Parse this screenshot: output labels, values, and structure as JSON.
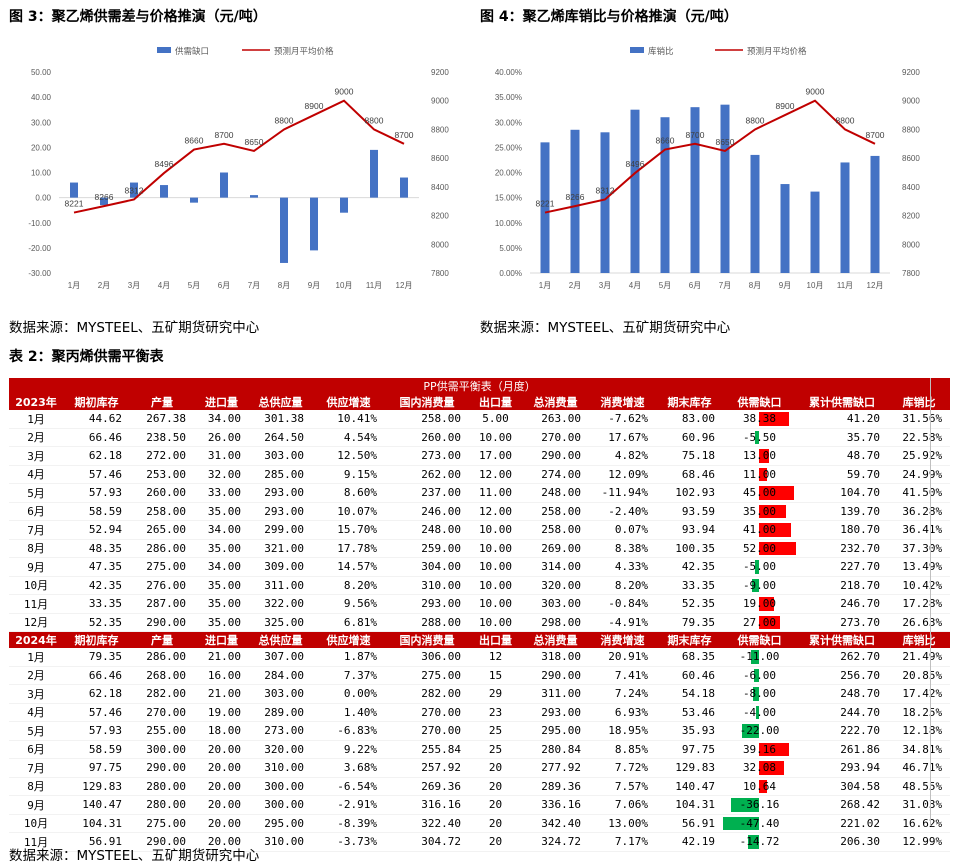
{
  "colors": {
    "bar": "#4472c4",
    "line": "#c00000",
    "header_bg": "#c00000",
    "gap_pos": "#ff0000",
    "gap_neg": "#00b050"
  },
  "fig3": {
    "title": "图 3：聚乙烯供需差与价格推演（元/吨）",
    "legend_bar": "供需缺口",
    "legend_line": "预测月平均价格",
    "left_ticks": [
      "50.00",
      "40.00",
      "30.00",
      "20.00",
      "10.00",
      "0.00",
      "-10.00",
      "-20.00",
      "-30.00"
    ],
    "right_ticks": [
      "9200",
      "9000",
      "8800",
      "8600",
      "8400",
      "8200",
      "8000",
      "7800"
    ]
  },
  "fig4": {
    "title": "图 4：聚乙烯库销比与价格推演（元/吨）",
    "legend_bar": "库销比",
    "legend_line": "预测月平均价格",
    "left_ticks": [
      "40.00%",
      "35.00%",
      "30.00%",
      "25.00%",
      "20.00%",
      "15.00%",
      "10.00%",
      "5.00%",
      "0.00%"
    ],
    "right_ticks": [
      "9200",
      "9000",
      "8800",
      "8600",
      "8400",
      "8200",
      "8000",
      "7800"
    ]
  },
  "chart_data": [
    {
      "type": "bar",
      "title": "图 3：聚乙烯供需差与价格推演（元/吨）",
      "categories": [
        "1月",
        "2月",
        "3月",
        "4月",
        "5月",
        "6月",
        "7月",
        "8月",
        "9月",
        "10月",
        "11月",
        "12月"
      ],
      "series": [
        {
          "name": "供需缺口",
          "type": "bar",
          "axis": "left",
          "values": [
            6,
            -3,
            6,
            5,
            -2,
            10,
            1,
            -26,
            -21,
            -6,
            19,
            8
          ]
        },
        {
          "name": "预测月平均价格",
          "type": "line",
          "axis": "right",
          "values": [
            8221,
            8266,
            8312,
            8496,
            8660,
            8700,
            8650,
            8800,
            8900,
            9000,
            8800,
            8700
          ]
        }
      ],
      "ylim_left": [
        -30,
        50
      ],
      "ylim_right": [
        7800,
        9200
      ]
    },
    {
      "type": "bar",
      "title": "图 4：聚乙烯库销比与价格推演（元/吨）",
      "categories": [
        "1月",
        "2月",
        "3月",
        "4月",
        "5月",
        "6月",
        "7月",
        "8月",
        "9月",
        "10月",
        "11月",
        "12月"
      ],
      "series": [
        {
          "name": "库销比",
          "type": "bar",
          "axis": "left",
          "values": [
            0.26,
            0.285,
            0.28,
            0.325,
            0.31,
            0.33,
            0.335,
            0.235,
            0.177,
            0.162,
            0.22,
            0.233
          ]
        },
        {
          "name": "预测月平均价格",
          "type": "line",
          "axis": "right",
          "values": [
            8221,
            8266,
            8312,
            8496,
            8660,
            8700,
            8650,
            8800,
            8900,
            9000,
            8800,
            8700
          ]
        }
      ],
      "ylim_left": [
        0,
        0.4
      ],
      "ylim_right": [
        7800,
        9200
      ]
    }
  ],
  "source_text": "数据来源：MYSTEEL、五矿期货研究中心",
  "table_caption": "表 2：聚丙烯供需平衡表",
  "table": {
    "title": "PP供需平衡表（月度）",
    "sections": [
      {
        "year": "2023年",
        "headers": [
          "期初库存",
          "产量",
          "进口量",
          "总供应量",
          "供应增速",
          "国内消费量",
          "出口量",
          "总消费量",
          "消费增速",
          "期末库存",
          "供需缺口",
          "累计供需缺口",
          "库销比"
        ],
        "rows": [
          [
            "1月",
            "44.62",
            "267.38",
            "34.00",
            "301.38",
            "10.41%",
            "258.00",
            "5.00",
            "263.00",
            "-7.62%",
            "83.00",
            "38.38",
            "41.20",
            "31.56%"
          ],
          [
            "2月",
            "66.46",
            "238.50",
            "26.00",
            "264.50",
            "4.54%",
            "260.00",
            "10.00",
            "270.00",
            "17.67%",
            "60.96",
            "-5.50",
            "35.70",
            "22.58%"
          ],
          [
            "3月",
            "62.18",
            "272.00",
            "31.00",
            "303.00",
            "12.50%",
            "273.00",
            "17.00",
            "290.00",
            "4.82%",
            "75.18",
            "13.00",
            "48.70",
            "25.92%"
          ],
          [
            "4月",
            "57.46",
            "253.00",
            "32.00",
            "285.00",
            "9.15%",
            "262.00",
            "12.00",
            "274.00",
            "12.09%",
            "68.46",
            "11.00",
            "59.70",
            "24.99%"
          ],
          [
            "5月",
            "57.93",
            "260.00",
            "33.00",
            "293.00",
            "8.60%",
            "237.00",
            "11.00",
            "248.00",
            "-11.94%",
            "102.93",
            "45.00",
            "104.70",
            "41.50%"
          ],
          [
            "6月",
            "58.59",
            "258.00",
            "35.00",
            "293.00",
            "10.07%",
            "246.00",
            "12.00",
            "258.00",
            "-2.40%",
            "93.59",
            "35.00",
            "139.70",
            "36.28%"
          ],
          [
            "7月",
            "52.94",
            "265.00",
            "34.00",
            "299.00",
            "15.70%",
            "248.00",
            "10.00",
            "258.00",
            "0.07%",
            "93.94",
            "41.00",
            "180.70",
            "36.41%"
          ],
          [
            "8月",
            "48.35",
            "286.00",
            "35.00",
            "321.00",
            "17.78%",
            "259.00",
            "10.00",
            "269.00",
            "8.38%",
            "100.35",
            "52.00",
            "232.70",
            "37.30%"
          ],
          [
            "9月",
            "47.35",
            "275.00",
            "34.00",
            "309.00",
            "14.57%",
            "304.00",
            "10.00",
            "314.00",
            "4.33%",
            "42.35",
            "-5.00",
            "227.70",
            "13.49%"
          ],
          [
            "10月",
            "42.35",
            "276.00",
            "35.00",
            "311.00",
            "8.20%",
            "310.00",
            "10.00",
            "320.00",
            "8.20%",
            "33.35",
            "-9.00",
            "218.70",
            "10.42%"
          ],
          [
            "11月",
            "33.35",
            "287.00",
            "35.00",
            "322.00",
            "9.56%",
            "293.00",
            "10.00",
            "303.00",
            "-0.84%",
            "52.35",
            "19.00",
            "246.70",
            "17.28%"
          ],
          [
            "12月",
            "52.35",
            "290.00",
            "35.00",
            "325.00",
            "6.81%",
            "288.00",
            "10.00",
            "298.00",
            "-4.91%",
            "79.35",
            "27.00",
            "273.70",
            "26.63%"
          ]
        ]
      },
      {
        "year": "2024年",
        "headers": [
          "期初库存",
          "产量",
          "进口量",
          "总供应量",
          "供应增速",
          "国内消费量",
          "出口量",
          "总消费量",
          "消费增速",
          "期末库存",
          "供需缺口",
          "累计供需缺口",
          "库销比"
        ],
        "rows": [
          [
            "1月",
            "79.35",
            "286.00",
            "21.00",
            "307.00",
            "1.87%",
            "306.00",
            "12",
            "318.00",
            "20.91%",
            "68.35",
            "-11.00",
            "262.70",
            "21.49%"
          ],
          [
            "2月",
            "66.46",
            "268.00",
            "16.00",
            "284.00",
            "7.37%",
            "275.00",
            "15",
            "290.00",
            "7.41%",
            "60.46",
            "-6.00",
            "256.70",
            "20.85%"
          ],
          [
            "3月",
            "62.18",
            "282.00",
            "21.00",
            "303.00",
            "0.00%",
            "282.00",
            "29",
            "311.00",
            "7.24%",
            "54.18",
            "-8.00",
            "248.70",
            "17.42%"
          ],
          [
            "4月",
            "57.46",
            "270.00",
            "19.00",
            "289.00",
            "1.40%",
            "270.00",
            "23",
            "293.00",
            "6.93%",
            "53.46",
            "-4.00",
            "244.70",
            "18.25%"
          ],
          [
            "5月",
            "57.93",
            "255.00",
            "18.00",
            "273.00",
            "-6.83%",
            "270.00",
            "25",
            "295.00",
            "18.95%",
            "35.93",
            "-22.00",
            "222.70",
            "12.18%"
          ],
          [
            "6月",
            "58.59",
            "300.00",
            "20.00",
            "320.00",
            "9.22%",
            "255.84",
            "25",
            "280.84",
            "8.85%",
            "97.75",
            "39.16",
            "261.86",
            "34.81%"
          ],
          [
            "7月",
            "97.75",
            "290.00",
            "20.00",
            "310.00",
            "3.68%",
            "257.92",
            "20",
            "277.92",
            "7.72%",
            "129.83",
            "32.08",
            "293.94",
            "46.71%"
          ],
          [
            "8月",
            "129.83",
            "280.00",
            "20.00",
            "300.00",
            "-6.54%",
            "269.36",
            "20",
            "289.36",
            "7.57%",
            "140.47",
            "10.64",
            "304.58",
            "48.55%"
          ],
          [
            "9月",
            "140.47",
            "280.00",
            "20.00",
            "300.00",
            "-2.91%",
            "316.16",
            "20",
            "336.16",
            "7.06%",
            "104.31",
            "-36.16",
            "268.42",
            "31.03%"
          ],
          [
            "10月",
            "104.31",
            "275.00",
            "20.00",
            "295.00",
            "-8.39%",
            "322.40",
            "20",
            "342.40",
            "13.00%",
            "56.91",
            "-47.40",
            "221.02",
            "16.62%"
          ],
          [
            "11月",
            "56.91",
            "290.00",
            "20.00",
            "310.00",
            "-3.73%",
            "304.72",
            "20",
            "324.72",
            "7.17%",
            "42.19",
            "-14.72",
            "206.30",
            "12.99%"
          ]
        ]
      }
    ]
  }
}
